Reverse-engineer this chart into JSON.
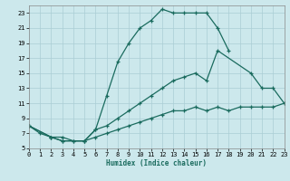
{
  "xlabel": "Humidex (Indice chaleur)",
  "bg_color": "#cce8ec",
  "grid_color": "#aacdd4",
  "line_color": "#1a6b5e",
  "xmin": 0,
  "xmax": 23,
  "ymin": 5,
  "ymax": 24,
  "yticks": [
    5,
    7,
    9,
    11,
    13,
    15,
    17,
    19,
    21,
    23
  ],
  "xticks": [
    0,
    1,
    2,
    3,
    4,
    5,
    6,
    7,
    8,
    9,
    10,
    11,
    12,
    13,
    14,
    15,
    16,
    17,
    18,
    19,
    20,
    21,
    22,
    23
  ],
  "curve1_x": [
    0,
    1,
    2,
    3,
    5,
    6,
    7,
    8,
    9,
    10,
    11,
    12,
    13,
    14,
    15,
    16,
    17,
    18
  ],
  "curve1_y": [
    8,
    7,
    6.5,
    6,
    6,
    7.5,
    12,
    16.5,
    19,
    21,
    22,
    23.5,
    23,
    23,
    23,
    23,
    21,
    18
  ],
  "curve2_x": [
    0,
    2,
    3,
    4,
    5,
    6,
    7,
    8,
    9,
    10,
    11,
    12,
    13,
    14,
    15,
    16,
    17,
    20,
    21,
    22,
    23
  ],
  "curve2_y": [
    8,
    6.5,
    6,
    6,
    6,
    7.5,
    8,
    9,
    10,
    11,
    12,
    13,
    14,
    14.5,
    15,
    14,
    18,
    15,
    13,
    13,
    11
  ],
  "curve3_x": [
    0,
    2,
    3,
    4,
    5,
    6,
    7,
    8,
    9,
    10,
    11,
    12,
    13,
    14,
    15,
    16,
    17,
    18,
    19,
    20,
    21,
    22,
    23
  ],
  "curve3_y": [
    8,
    6.5,
    6.5,
    6,
    6,
    6.5,
    7,
    7.5,
    8,
    8.5,
    9,
    9.5,
    10,
    10,
    10.5,
    10,
    10.5,
    10,
    10.5,
    10.5,
    10.5,
    10.5,
    11
  ]
}
